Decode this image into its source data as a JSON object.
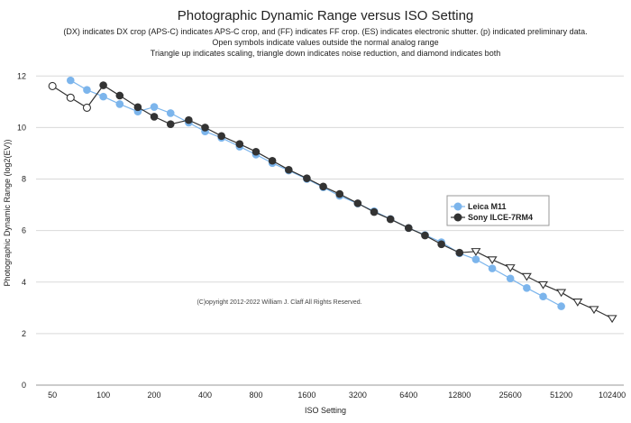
{
  "chart_data": {
    "type": "line",
    "title": "Photographic Dynamic Range versus ISO Setting",
    "subtitle": [
      "(DX) indicates DX crop (APS-C) indicates APS-C crop, and (FF) indicates FF crop. (ES) indicates electronic shutter. (p) indicated preliminary data.",
      "Open symbols indicate values outside the normal analog range",
      "Triangle up indicates scaling, triangle down indicates noise reduction, and diamond indicates both"
    ],
    "xlabel": "ISO Setting",
    "ylabel": "Photographic Dynamic Range (log2(EV))",
    "x_scale": "log2",
    "x_ticks": [
      "50",
      "100",
      "200",
      "400",
      "800",
      "1600",
      "3200",
      "6400",
      "12800",
      "25600",
      "51200",
      "102400"
    ],
    "y_ticks": [
      "0",
      "2",
      "4",
      "6",
      "8",
      "10",
      "12"
    ],
    "ylim": [
      0,
      12.5
    ],
    "xlim": [
      40,
      120000
    ],
    "copyright": "(C)opyright 2012-2022 William J. Claff All Rights Reserved.",
    "legend_position": "right-middle",
    "series": [
      {
        "name": "Leica M11",
        "color": "#7cb5ec",
        "x": [
          64,
          80,
          100,
          125,
          160,
          200,
          250,
          320,
          400,
          500,
          640,
          800,
          1000,
          1250,
          1600,
          2000,
          2500,
          3200,
          4000,
          5000,
          6400,
          8000,
          10000,
          12800,
          16000,
          20000,
          25600,
          32000,
          40000,
          51200
        ],
        "y": [
          11.83,
          11.46,
          11.2,
          10.91,
          10.62,
          10.8,
          10.56,
          10.19,
          9.85,
          9.6,
          9.26,
          8.95,
          8.62,
          8.33,
          8.0,
          7.68,
          7.35,
          7.05,
          6.75,
          6.45,
          6.1,
          5.83,
          5.55,
          5.12,
          4.88,
          4.53,
          4.14,
          3.77,
          3.44,
          3.06
        ],
        "markers": [
          "filled",
          "filled",
          "filled",
          "filled",
          "filled",
          "filled",
          "filled",
          "filled",
          "filled",
          "filled",
          "filled",
          "filled",
          "filled",
          "filled",
          "filled",
          "filled",
          "filled",
          "filled",
          "filled",
          "filled",
          "filled",
          "filled",
          "filled",
          "filled",
          "filled",
          "filled",
          "filled",
          "filled",
          "filled",
          "filled"
        ]
      },
      {
        "name": "Sony ILCE-7RM4",
        "color": "#333333",
        "x": [
          50,
          64,
          80,
          100,
          125,
          160,
          200,
          250,
          320,
          400,
          500,
          640,
          800,
          1000,
          1250,
          1600,
          2000,
          2500,
          3200,
          4000,
          5000,
          6400,
          8000,
          10000,
          12800,
          16000,
          20000,
          25600,
          32000,
          40000,
          51200,
          64000,
          80000,
          102400
        ],
        "y": [
          11.61,
          11.16,
          10.77,
          11.64,
          11.24,
          10.79,
          10.42,
          10.13,
          10.29,
          10.0,
          9.67,
          9.36,
          9.06,
          8.71,
          8.36,
          8.03,
          7.71,
          7.42,
          7.06,
          6.72,
          6.44,
          6.1,
          5.81,
          5.47,
          5.14,
          5.19,
          4.87,
          4.56,
          4.22,
          3.9,
          3.6,
          3.23,
          2.94,
          2.59
        ],
        "markers": [
          "open-circle",
          "open-circle",
          "open-circle",
          "filled",
          "filled",
          "filled",
          "filled",
          "filled",
          "filled",
          "filled",
          "filled",
          "filled",
          "filled",
          "filled",
          "filled",
          "filled",
          "filled",
          "filled",
          "filled",
          "filled",
          "filled",
          "filled",
          "filled",
          "filled",
          "filled",
          "triangle-down",
          "triangle-down",
          "triangle-down",
          "triangle-down",
          "triangle-down",
          "triangle-down",
          "triangle-down",
          "triangle-down",
          "triangle-down"
        ]
      }
    ]
  }
}
